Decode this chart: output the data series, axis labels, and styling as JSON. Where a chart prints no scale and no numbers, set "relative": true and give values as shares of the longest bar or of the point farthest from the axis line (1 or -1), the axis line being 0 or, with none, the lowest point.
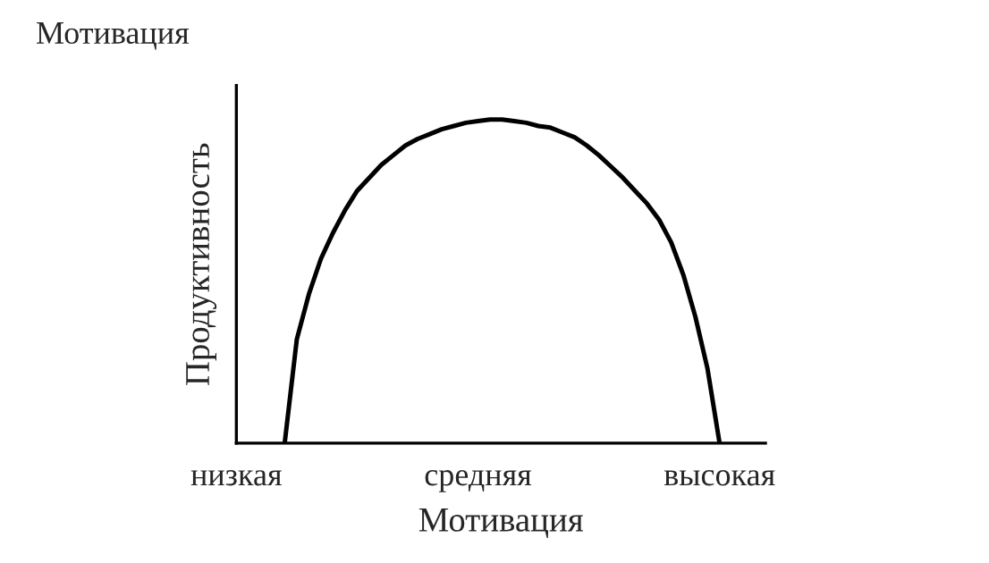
{
  "chart_data": {
    "type": "line",
    "title": "Мотивация",
    "xlabel": "Мотивация",
    "ylabel": "Продуктивность",
    "relative": true,
    "categories": [
      "низкая",
      null,
      null,
      null,
      null,
      null,
      null,
      null,
      null,
      null,
      null,
      null,
      null,
      null,
      null,
      null,
      null,
      null,
      null,
      null,
      "средняя",
      null,
      null,
      null,
      null,
      null,
      null,
      null,
      null,
      null,
      null,
      null,
      null,
      null,
      null,
      null,
      null,
      null,
      null,
      null,
      "высокая"
    ],
    "series": [
      {
        "color": "#000000",
        "values": [
          null,
          null,
          null,
          null,
          0,
          0.32,
          0.46,
          0.57,
          0.65,
          0.72,
          0.78,
          0.82,
          0.86,
          0.89,
          0.92,
          0.94,
          0.955,
          0.97,
          0.98,
          0.99,
          0.995,
          1.0,
          1.0,
          0.995,
          0.99,
          0.98,
          0.975,
          0.96,
          0.945,
          0.92,
          0.89,
          0.855,
          0.82,
          0.78,
          0.74,
          0.69,
          0.62,
          0.52,
          0.39,
          0.23,
          0
        ]
      }
    ],
    "grid": false,
    "legend": false
  }
}
